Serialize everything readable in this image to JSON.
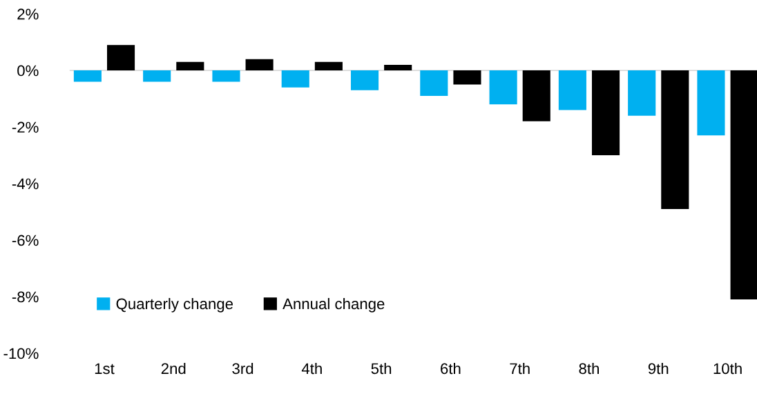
{
  "chart_data": {
    "type": "bar",
    "categories": [
      "1st",
      "2nd",
      "3rd",
      "4th",
      "5th",
      "6th",
      "7th",
      "8th",
      "9th",
      "10th"
    ],
    "series": [
      {
        "name": "Quarterly change",
        "color": "#00b0f0",
        "values": [
          -0.4,
          -0.4,
          -0.4,
          -0.6,
          -0.7,
          -0.9,
          -1.2,
          -1.4,
          -1.6,
          -2.3
        ]
      },
      {
        "name": "Annual change",
        "color": "#000000",
        "values": [
          0.9,
          0.3,
          0.4,
          0.3,
          0.2,
          -0.5,
          -1.8,
          -3.0,
          -4.9,
          -8.1
        ]
      }
    ],
    "ylim": [
      -10,
      2
    ],
    "yticks": [
      {
        "value": -10,
        "label": "-10%"
      },
      {
        "value": -8,
        "label": "-8%"
      },
      {
        "value": -6,
        "label": "-6%"
      },
      {
        "value": -4,
        "label": "-4%"
      },
      {
        "value": -2,
        "label": "-2%"
      },
      {
        "value": 0,
        "label": "0%"
      },
      {
        "value": 2,
        "label": "2%"
      }
    ],
    "ref_lines": [
      {
        "axis": "y",
        "value": 0,
        "color": "#d9d9d9"
      }
    ],
    "legend": "bottom left"
  }
}
